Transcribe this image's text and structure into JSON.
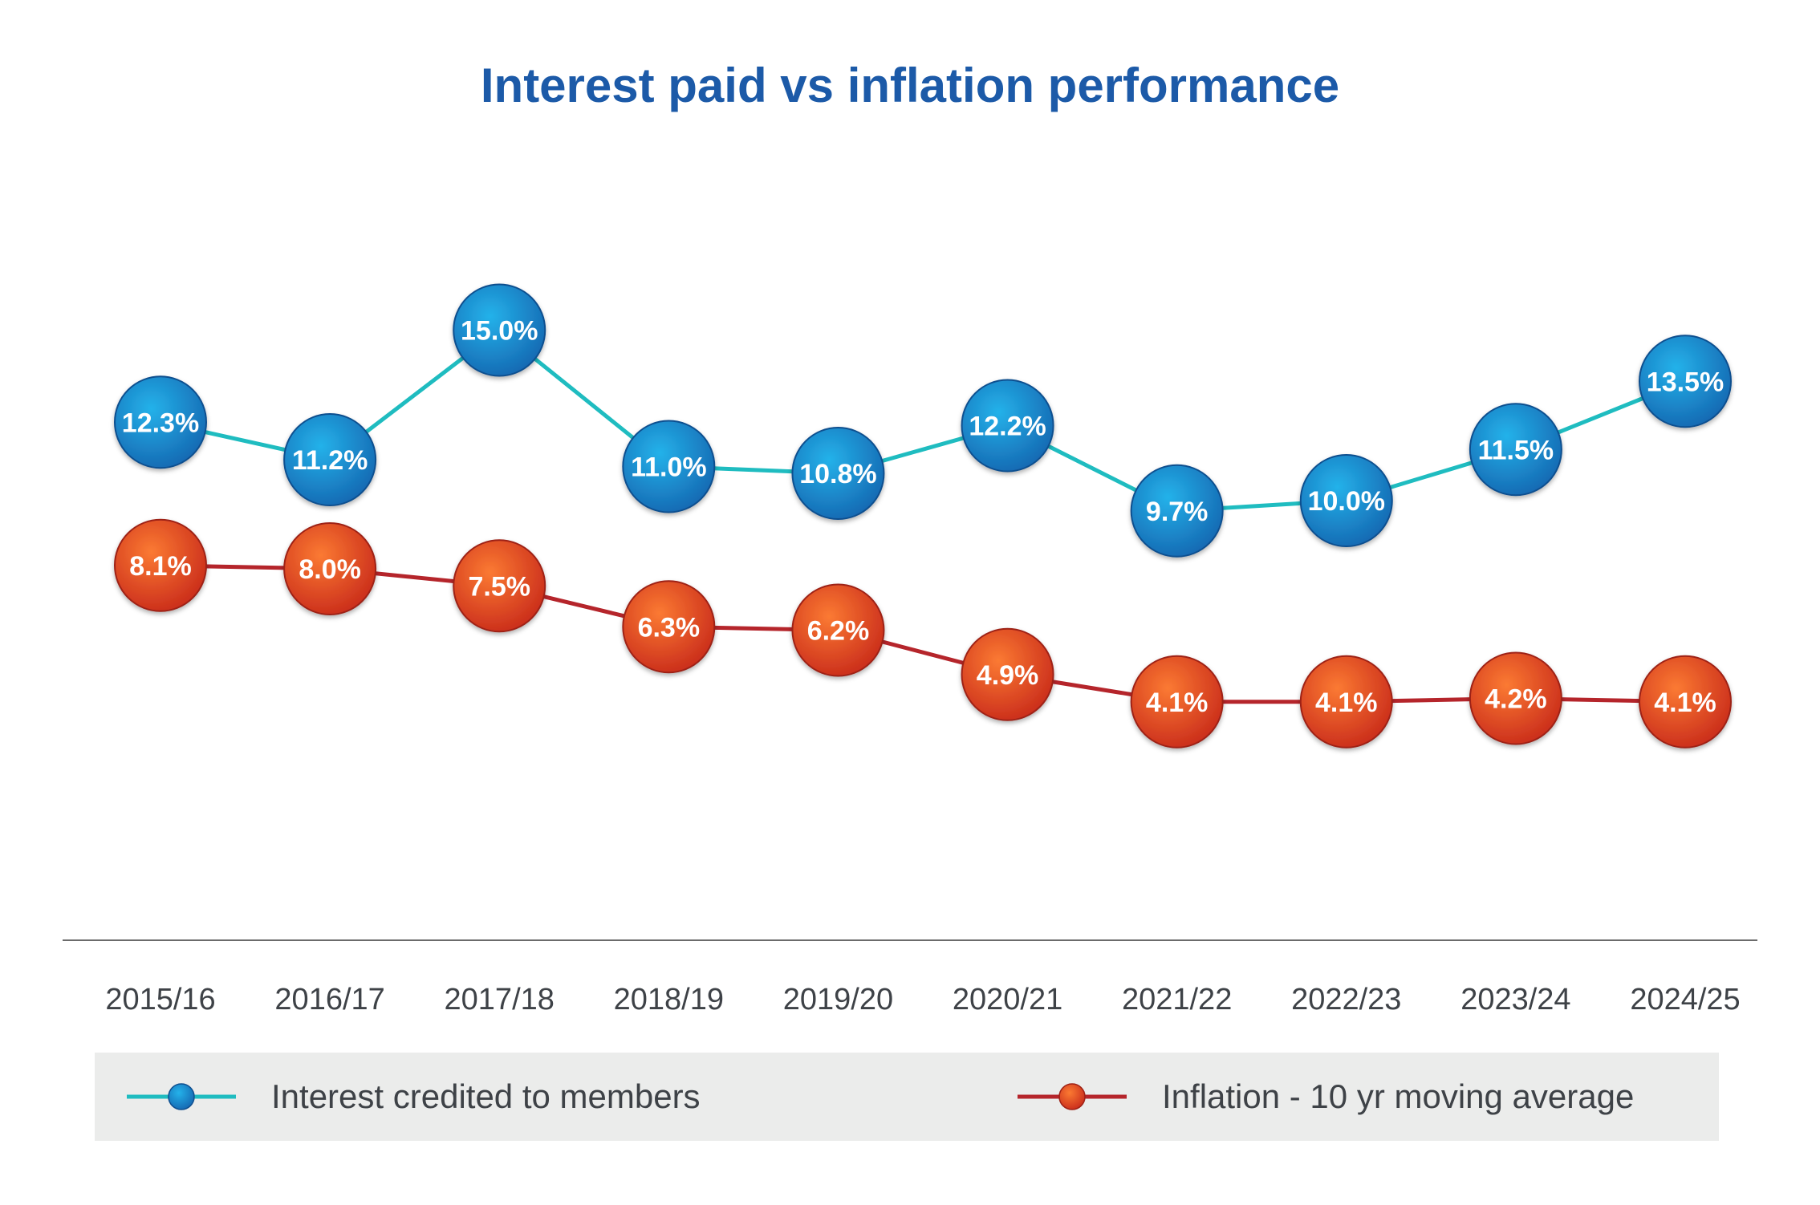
{
  "chart_data": {
    "type": "line",
    "title": "Interest paid vs inflation performance",
    "categories": [
      "2015/16",
      "2016/17",
      "2017/18",
      "2018/19",
      "2019/20",
      "2020/21",
      "2021/22",
      "2022/23",
      "2023/24",
      "2024/25"
    ],
    "series": [
      {
        "name": "Interest credited to members",
        "values": [
          12.3,
          11.2,
          15.0,
          11.0,
          10.8,
          12.2,
          9.7,
          10.0,
          11.5,
          13.5
        ],
        "labels": [
          "12.3%",
          "11.2%",
          "15.0%",
          "11.0%",
          "10.8%",
          "12.2%",
          "9.7%",
          "10.0%",
          "11.5%",
          "13.5%"
        ],
        "line_color": "#1fbcc0",
        "marker_color": "#1a86c9"
      },
      {
        "name": "Inflation - 10 yr moving average",
        "values": [
          8.1,
          8.0,
          7.5,
          6.3,
          6.2,
          4.9,
          4.1,
          4.1,
          4.2,
          4.1
        ],
        "labels": [
          "8.1%",
          "8.0%",
          "7.5%",
          "6.3%",
          "6.2%",
          "4.9%",
          "4.1%",
          "4.1%",
          "4.2%",
          "4.1%"
        ],
        "line_color": "#b5252b",
        "marker_color": "#ef5a22"
      }
    ],
    "grid": false,
    "legend_position": "bottom"
  },
  "colors": {
    "title": "#1c5aa8",
    "axis_line": "#6b6b6b",
    "tick_label": "#3e4247",
    "legend_background": "#ebeceb"
  }
}
